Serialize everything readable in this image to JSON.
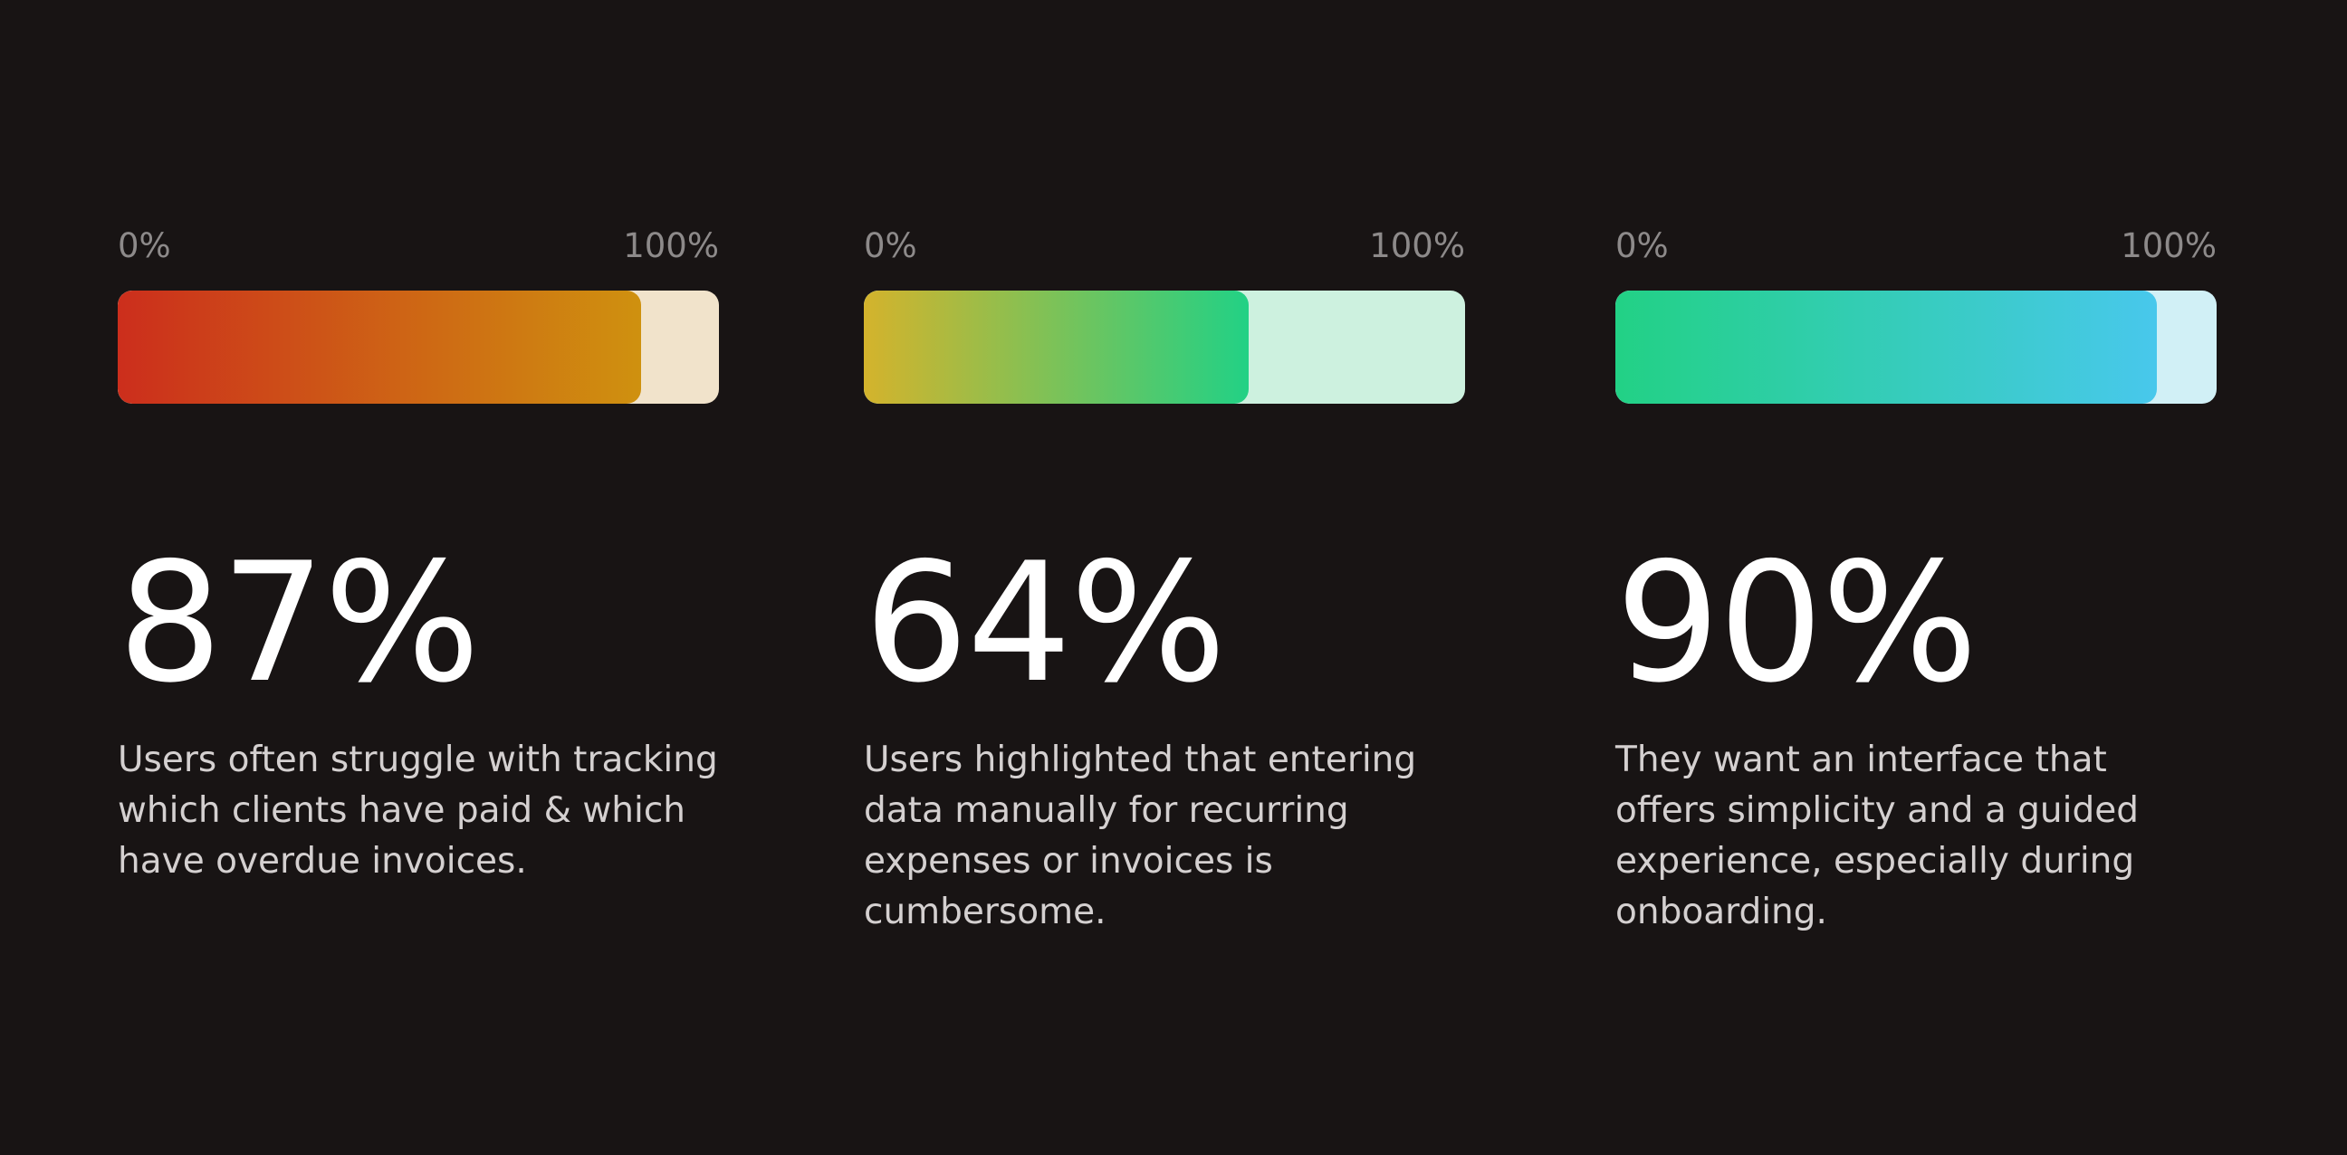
{
  "stats": [
    {
      "scale_min": "0%",
      "scale_max": "100%",
      "value": 87,
      "percent_label": "87%",
      "description": "Users often struggle with tracking which clients have paid & which have overdue invoices.",
      "colors": {
        "gradient_start": "#cc2e1c",
        "gradient_end": "#cf910f",
        "track": "#f1e3cb"
      }
    },
    {
      "scale_min": "0%",
      "scale_max": "100%",
      "value": 64,
      "percent_label": "64%",
      "description": "Users highlighted that entering data manually for recurring expenses or invoices is cumbersome.",
      "colors": {
        "gradient_start": "#d4b32c",
        "gradient_end": "#22d185",
        "track": "#cdf1df"
      }
    },
    {
      "scale_min": "0%",
      "scale_max": "100%",
      "value": 90,
      "percent_label": "90%",
      "description": "They want an interface that offers simplicity and a guided experience, especially during onboarding.",
      "colors": {
        "gradient_start": "#22d185",
        "gradient_end": "#48c8ec",
        "track": "#d1f0f6"
      }
    }
  ]
}
